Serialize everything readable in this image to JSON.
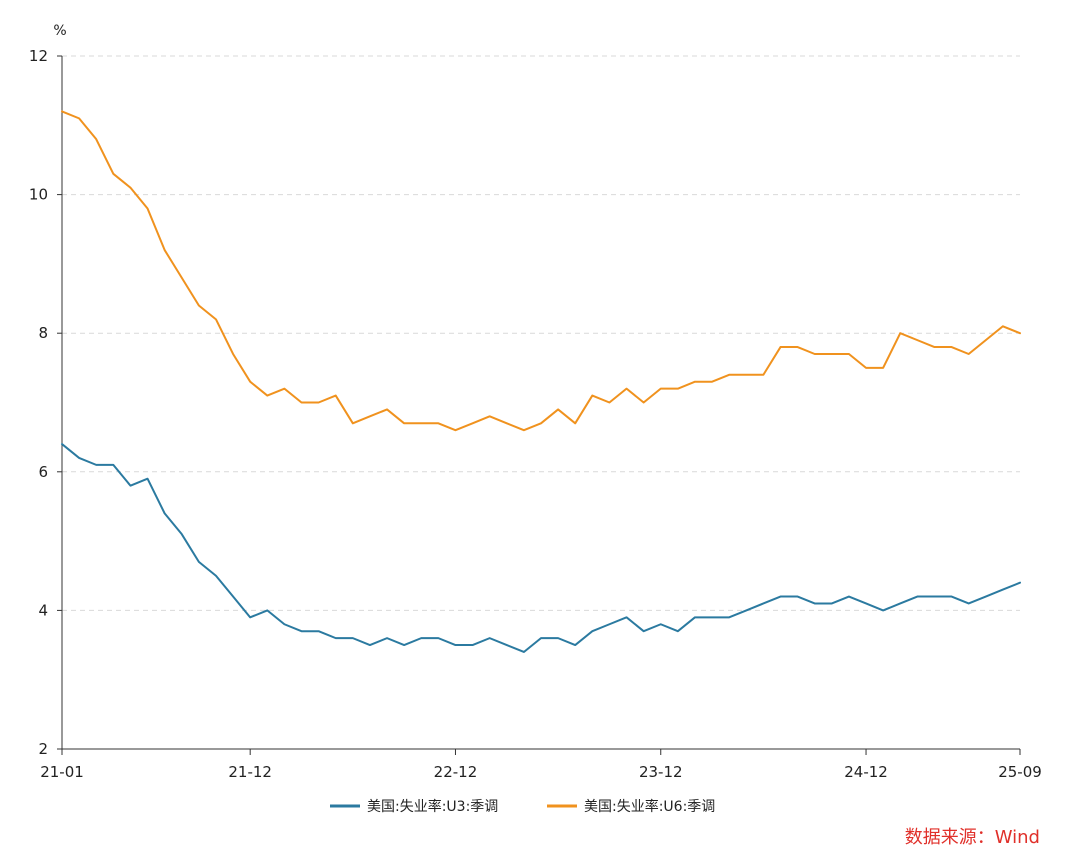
{
  "chart_data": {
    "type": "line",
    "ylabel": "%",
    "ylim": [
      2,
      12
    ],
    "yticks": [
      2,
      4,
      6,
      8,
      10,
      12
    ],
    "grid": true,
    "legend_position": "bottom-center",
    "x_tick_labels": [
      "21-01",
      "21-12",
      "22-12",
      "23-12",
      "24-12",
      "25-09"
    ],
    "x": [
      "21-01",
      "21-02",
      "21-03",
      "21-04",
      "21-05",
      "21-06",
      "21-07",
      "21-08",
      "21-09",
      "21-10",
      "21-11",
      "21-12",
      "22-01",
      "22-02",
      "22-03",
      "22-04",
      "22-05",
      "22-06",
      "22-07",
      "22-08",
      "22-09",
      "22-10",
      "22-11",
      "22-12",
      "23-01",
      "23-02",
      "23-03",
      "23-04",
      "23-05",
      "23-06",
      "23-07",
      "23-08",
      "23-09",
      "23-10",
      "23-11",
      "23-12",
      "24-01",
      "24-02",
      "24-03",
      "24-04",
      "24-05",
      "24-06",
      "24-07",
      "24-08",
      "24-09",
      "24-10",
      "24-11",
      "24-12",
      "25-01",
      "25-02",
      "25-03",
      "25-04",
      "25-05",
      "25-06",
      "25-07",
      "25-08",
      "25-09"
    ],
    "series": [
      {
        "name": "美国:失业率:U3:季调",
        "color": "#2b7aa0",
        "values": [
          6.4,
          6.2,
          6.1,
          6.1,
          5.8,
          5.9,
          5.4,
          5.1,
          4.7,
          4.5,
          4.2,
          3.9,
          4.0,
          3.8,
          3.7,
          3.7,
          3.6,
          3.6,
          3.5,
          3.6,
          3.5,
          3.6,
          3.6,
          3.5,
          3.5,
          3.6,
          3.5,
          3.4,
          3.6,
          3.6,
          3.5,
          3.7,
          3.8,
          3.9,
          3.7,
          3.8,
          3.7,
          3.9,
          3.9,
          3.9,
          4.0,
          4.1,
          4.2,
          4.2,
          4.1,
          4.1,
          4.2,
          4.1,
          4.0,
          4.1,
          4.2,
          4.2,
          4.2,
          4.1,
          4.2,
          4.3,
          4.4
        ]
      },
      {
        "name": "美国:失业率:U6:季调",
        "color": "#f0921e",
        "values": [
          11.2,
          11.1,
          10.8,
          10.3,
          10.1,
          9.8,
          9.2,
          8.8,
          8.4,
          8.2,
          7.7,
          7.3,
          7.1,
          7.2,
          7.0,
          7.0,
          7.1,
          6.7,
          6.8,
          6.9,
          6.7,
          6.7,
          6.7,
          6.6,
          6.7,
          6.8,
          6.7,
          6.6,
          6.7,
          6.9,
          6.7,
          7.1,
          7.0,
          7.2,
          7.0,
          7.2,
          7.2,
          7.3,
          7.3,
          7.4,
          7.4,
          7.4,
          7.8,
          7.8,
          7.7,
          7.7,
          7.7,
          7.5,
          7.5,
          8.0,
          7.9,
          7.8,
          7.8,
          7.7,
          7.9,
          8.1,
          8.0
        ]
      }
    ]
  },
  "source_text": "数据来源：Wind"
}
